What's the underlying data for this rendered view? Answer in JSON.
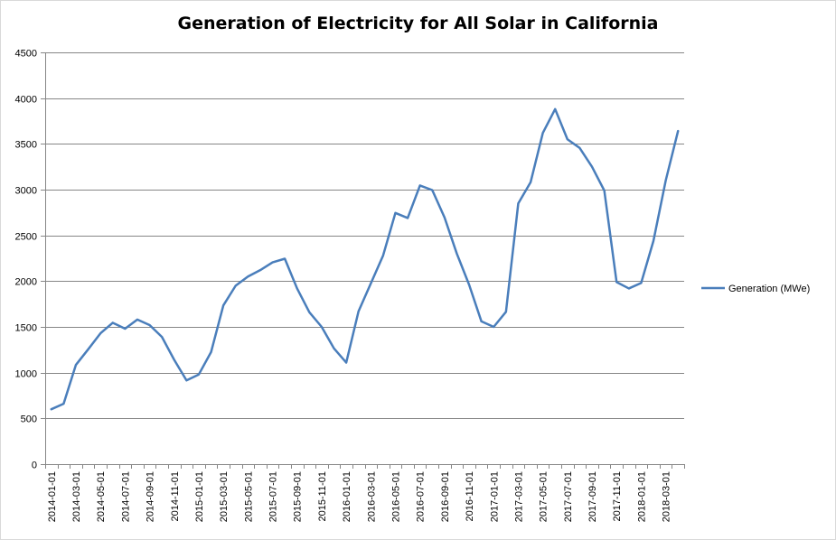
{
  "chart_data": {
    "type": "line",
    "title": "Generation of Electricity for All Solar in California",
    "xlabel": "",
    "ylabel": "",
    "ylim": [
      0,
      4500
    ],
    "yticks": [
      "0",
      "500",
      "1000",
      "1500",
      "2000",
      "2500",
      "3000",
      "3500",
      "4000",
      "4500"
    ],
    "x": [
      "2014-01-01",
      "2014-02-01",
      "2014-03-01",
      "2014-04-01",
      "2014-05-01",
      "2014-06-01",
      "2014-07-01",
      "2014-08-01",
      "2014-09-01",
      "2014-10-01",
      "2014-11-01",
      "2014-12-01",
      "2015-01-01",
      "2015-02-01",
      "2015-03-01",
      "2015-04-01",
      "2015-05-01",
      "2015-06-01",
      "2015-07-01",
      "2015-08-01",
      "2015-09-01",
      "2015-10-01",
      "2015-11-01",
      "2015-12-01",
      "2016-01-01",
      "2016-02-01",
      "2016-03-01",
      "2016-04-01",
      "2016-05-01",
      "2016-06-01",
      "2016-07-01",
      "2016-08-01",
      "2016-09-01",
      "2016-10-01",
      "2016-11-01",
      "2016-12-01",
      "2017-01-01",
      "2017-02-01",
      "2017-03-01",
      "2017-04-01",
      "2017-05-01",
      "2017-06-01",
      "2017-07-01",
      "2017-08-01",
      "2017-09-01",
      "2017-10-01",
      "2017-11-01",
      "2017-12-01",
      "2018-01-01",
      "2018-02-01",
      "2018-03-01",
      "2018-04-01"
    ],
    "xtick_labels": [
      "2014-01-01",
      "2014-03-01",
      "2014-05-01",
      "2014-07-01",
      "2014-09-01",
      "2014-11-01",
      "2015-01-01",
      "2015-03-01",
      "2015-05-01",
      "2015-07-01",
      "2015-09-01",
      "2015-11-01",
      "2016-01-01",
      "2016-03-01",
      "2016-05-01",
      "2016-07-01",
      "2016-09-01",
      "2016-11-01",
      "2017-01-01",
      "2017-03-01",
      "2017-05-01",
      "2017-07-01",
      "2017-09-01",
      "2017-11-01",
      "2018-01-01",
      "2018-03-01"
    ],
    "series": [
      {
        "name": "Generation (MWe)",
        "color": "#4a7ebb",
        "values": [
          600,
          660,
          1085,
          1255,
          1430,
          1545,
          1480,
          1580,
          1520,
          1390,
          1140,
          915,
          980,
          1225,
          1735,
          1950,
          2050,
          2120,
          2205,
          2245,
          1920,
          1660,
          1500,
          1265,
          1110,
          1670,
          1975,
          2280,
          2745,
          2690,
          3045,
          2995,
          2695,
          2300,
          1960,
          1560,
          1500,
          1665,
          2850,
          3080,
          3620,
          3880,
          3550,
          3455,
          3250,
          2990,
          1990,
          1920,
          1980,
          2440,
          3100,
          3640
        ]
      }
    ],
    "grid": true,
    "legend_position": "right"
  }
}
